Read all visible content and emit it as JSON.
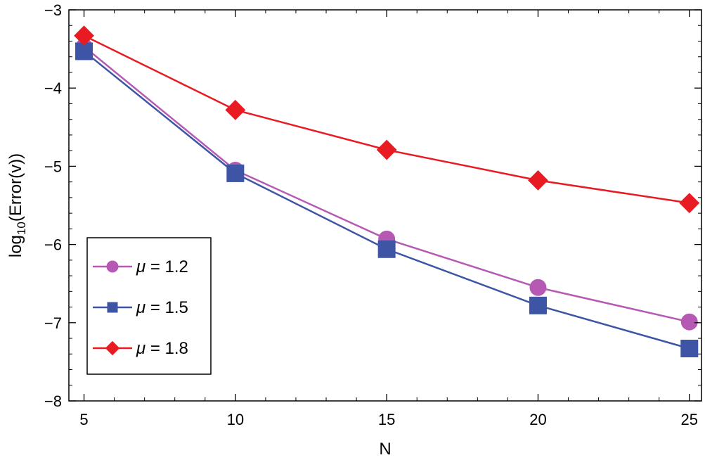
{
  "chart_data": {
    "type": "line",
    "title": "",
    "xlabel": "N",
    "ylabel": {
      "prefix": "log",
      "subscript": "10",
      "suffix": "(Error(v))"
    },
    "xlim": [
      4.5,
      25.4
    ],
    "ylim": [
      -8,
      -3
    ],
    "x_ticks": [
      5,
      10,
      15,
      20,
      25
    ],
    "x_tick_labels": [
      "5",
      "10",
      "15",
      "20",
      "25"
    ],
    "y_ticks": [
      -3,
      -4,
      -5,
      -6,
      -7,
      -8
    ],
    "y_tick_labels": [
      "−3",
      "−4",
      "−5",
      "−6",
      "−7",
      "−8"
    ],
    "x": [
      5,
      10,
      15,
      20,
      25
    ],
    "series": [
      {
        "name": "mu-1.2",
        "label": "μ = 1.2",
        "symbol": "μ",
        "rest": " = 1.2",
        "marker": "circle",
        "color": "#b659b4",
        "values": [
          -3.47,
          -5.05,
          -5.93,
          -6.55,
          -6.99
        ]
      },
      {
        "name": "mu-1.5",
        "label": "μ = 1.5",
        "symbol": "μ",
        "rest": " = 1.5",
        "marker": "square",
        "color": "#3e54a4",
        "values": [
          -3.53,
          -5.09,
          -6.06,
          -6.78,
          -7.33
        ]
      },
      {
        "name": "mu-1.8",
        "label": "μ = 1.8",
        "symbol": "μ",
        "rest": " = 1.8",
        "marker": "diamond",
        "color": "#e81b23",
        "values": [
          -3.33,
          -4.28,
          -4.79,
          -5.18,
          -5.47
        ]
      }
    ],
    "legend_position": "bottom-left",
    "grid": false
  }
}
